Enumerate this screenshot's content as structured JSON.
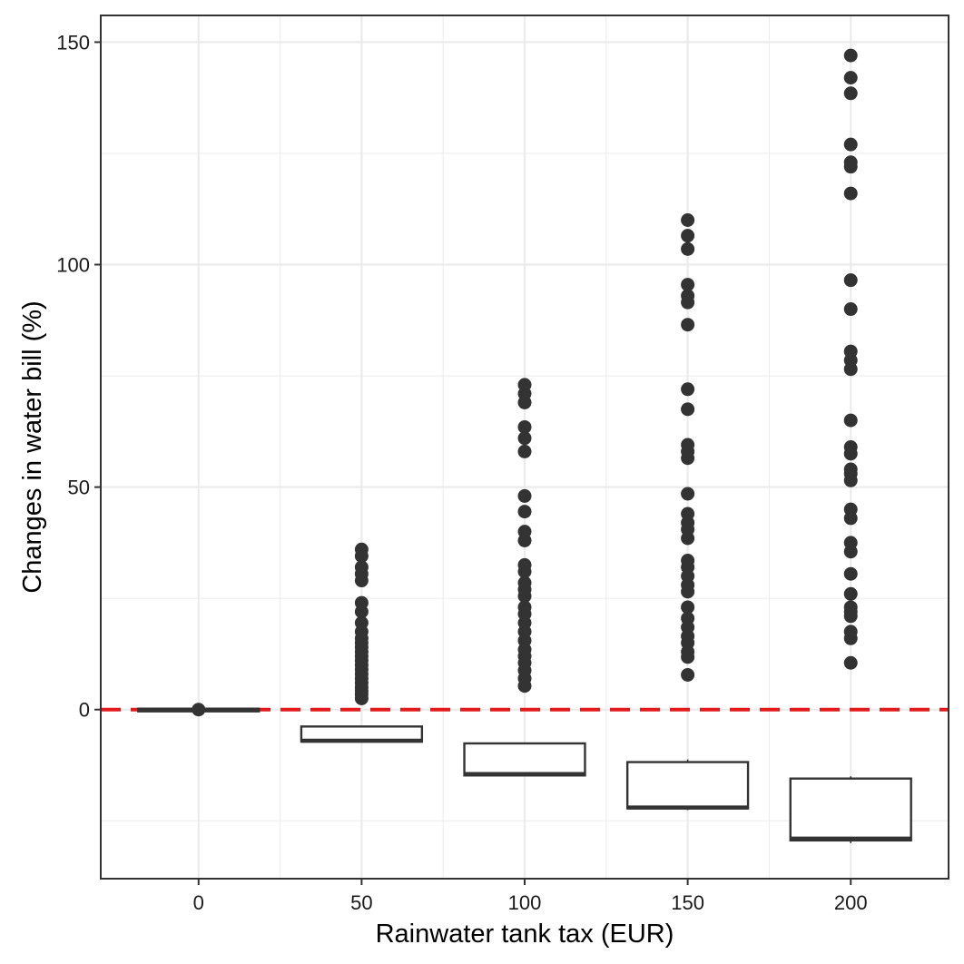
{
  "chart_data": {
    "type": "boxplot",
    "title": "",
    "xlabel": "Rainwater tank tax (EUR)",
    "ylabel": "Changes in water bill (%)",
    "xlim": [
      -30,
      230
    ],
    "ylim": [
      -38,
      156
    ],
    "x_ticks": [
      0,
      50,
      100,
      150,
      200
    ],
    "y_ticks": [
      0,
      50,
      100,
      150
    ],
    "x_minor_ticks": [
      25,
      75,
      125,
      175
    ],
    "y_minor_ticks": [
      -25,
      25,
      75,
      125
    ],
    "grid": true,
    "legend": "none",
    "reference_line": {
      "y": 0,
      "style": "dashed",
      "color": "#e31a1c"
    },
    "box_width": 37,
    "colors": {
      "box": "#333333",
      "point": "#333333",
      "grid": "#ebebeb",
      "panel_border": "#333333"
    },
    "boxes": [
      {
        "x": 0,
        "q1": -0.4,
        "median": 0,
        "q3": 0.2,
        "whisker_low": -0.4,
        "whisker_high": 0.2,
        "outliers": [
          0
        ]
      },
      {
        "x": 50,
        "q1": -7.2,
        "median": -7,
        "q3": -3.8,
        "whisker_low": -7.4,
        "whisker_high": -3.8,
        "outliers": [
          2.5,
          3.4,
          4.2,
          5,
          6,
          7,
          8,
          9,
          10,
          11,
          12,
          13,
          14,
          15,
          16,
          17.5,
          19.5,
          22,
          24,
          29,
          30.5,
          32,
          34.5,
          36
        ]
      },
      {
        "x": 100,
        "q1": -14.8,
        "median": -14.5,
        "q3": -7.6,
        "whisker_low": -15,
        "whisker_high": -7.6,
        "outliers": [
          5.3,
          7,
          8.8,
          10.5,
          12,
          13.5,
          15.5,
          17.5,
          19.5,
          21.5,
          23,
          25.5,
          27,
          28.5,
          31,
          32.5,
          38,
          40,
          44.5,
          48,
          58,
          61,
          63.5,
          69,
          71,
          73
        ]
      },
      {
        "x": 150,
        "q1": -22.2,
        "median": -22,
        "q3": -11.8,
        "whisker_low": -22.6,
        "whisker_high": -11.2,
        "outliers": [
          7.8,
          11.8,
          13,
          15,
          16.5,
          18.5,
          20.5,
          23,
          26.5,
          28,
          30,
          32,
          33.5,
          38.5,
          40.5,
          42,
          44,
          48.5,
          56.5,
          58,
          59.5,
          67.5,
          72,
          86.5,
          91.5,
          93,
          95.5,
          103.5,
          106.5,
          110
        ]
      },
      {
        "x": 200,
        "q1": -29.4,
        "median": -29,
        "q3": -15.5,
        "whisker_low": -30,
        "whisker_high": -15,
        "outliers": [
          10.5,
          16,
          17.5,
          21,
          22,
          23,
          26,
          30.5,
          35.5,
          37.5,
          43,
          45,
          51.5,
          53,
          54,
          57.5,
          59,
          65,
          76.5,
          78.5,
          80.5,
          90,
          96.5,
          116,
          122,
          123,
          127,
          138.5,
          142,
          147
        ]
      }
    ]
  }
}
